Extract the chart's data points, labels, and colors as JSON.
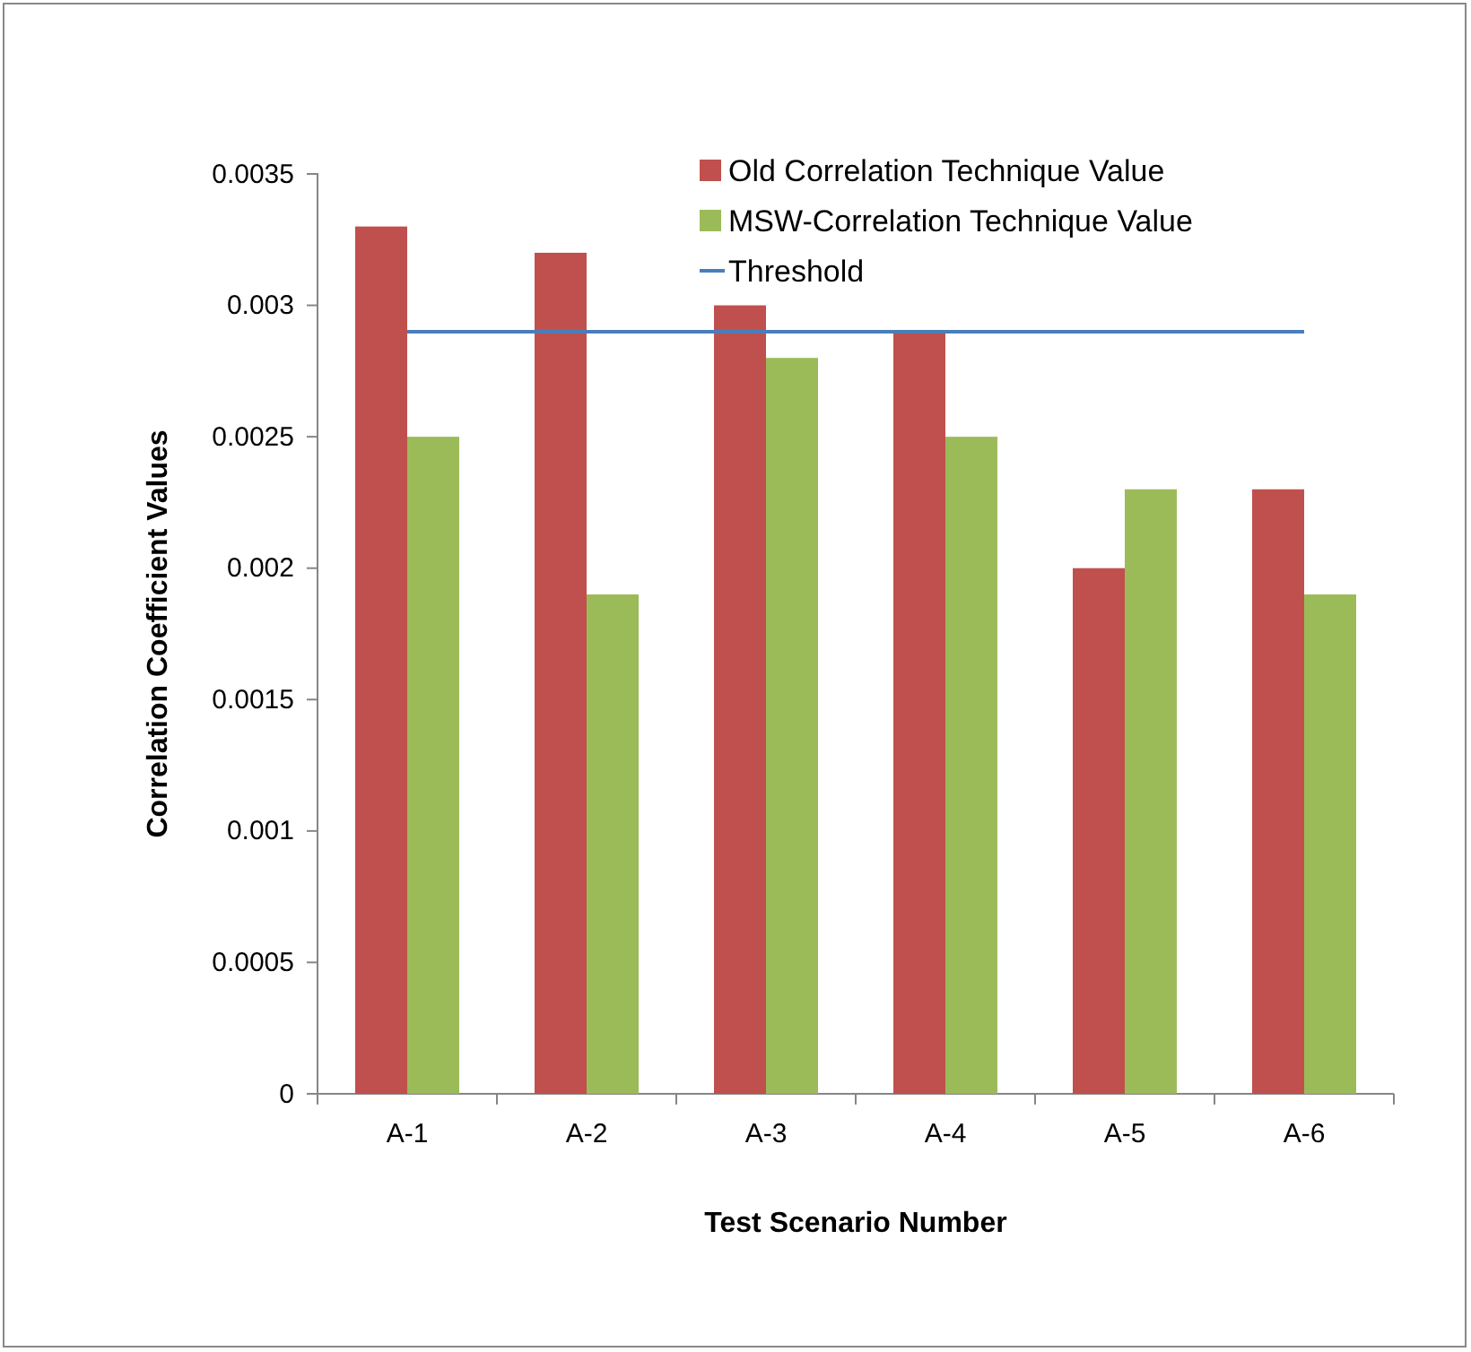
{
  "chart_data": {
    "type": "bar",
    "xlabel": "Test Scenario Number",
    "ylabel": "Correlation Coefficient Values",
    "categories": [
      "A-1",
      "A-2",
      "A-3",
      "A-4",
      "A-5",
      "A-6"
    ],
    "series": [
      {
        "name": "Old Correlation Technique Value",
        "color": "#c0504d",
        "values": [
          0.0033,
          0.0032,
          0.003,
          0.0029,
          0.002,
          0.0023
        ]
      },
      {
        "name": "MSW-Correlation Technique Value",
        "color": "#9bbb59",
        "values": [
          0.0025,
          0.0019,
          0.0028,
          0.0025,
          0.0023,
          0.0019
        ]
      },
      {
        "name": "Threshold",
        "type": "line",
        "color": "#4a7ebb",
        "values": [
          0.0029,
          0.0029,
          0.0029,
          0.0029,
          0.0029,
          0.0029
        ]
      }
    ],
    "ylim": [
      0,
      0.0035
    ],
    "yticks": [
      0,
      0.0005,
      0.001,
      0.0015,
      0.002,
      0.0025,
      0.003,
      0.0035
    ],
    "grid": false,
    "legend": "top right"
  }
}
